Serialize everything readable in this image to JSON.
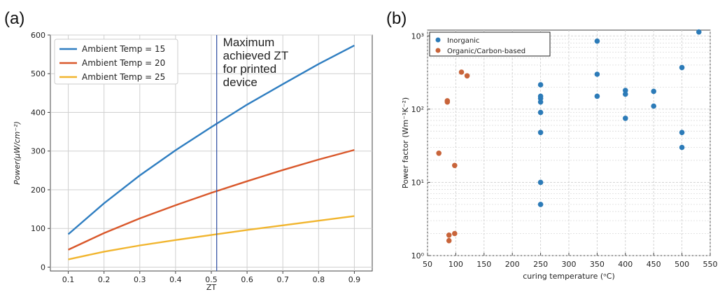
{
  "colors": {
    "blue": "#2f7ec1",
    "red": "#d9582b",
    "yellow": "#f1b52e",
    "vline": "#3b5aa8",
    "grid": "#d0d0d0",
    "inorganic": "#2c7bb8",
    "organic": "#c8643a"
  },
  "chart_data": [
    {
      "panel_label": "(a)",
      "type": "line",
      "title": "",
      "xlabel": "ZT",
      "ylabel": "Power(μW/cm⁻²)",
      "xlim": [
        0.05,
        0.95
      ],
      "ylim": [
        -10,
        600
      ],
      "x_ticks": [
        "0.1",
        "0.2",
        "0.3",
        "0.4",
        "0.5",
        "0.6",
        "0.7",
        "0.8",
        "0.9"
      ],
      "y_ticks": [
        "0",
        "100",
        "200",
        "300",
        "400",
        "500",
        "600"
      ],
      "grid": true,
      "legend_position": "top-left",
      "x": [
        0.1,
        0.2,
        0.3,
        0.4,
        0.5,
        0.6,
        0.7,
        0.8,
        0.9
      ],
      "series": [
        {
          "name": "Ambient Temp = 15",
          "color": "blue",
          "values": [
            85,
            165,
            237,
            302,
            362,
            420,
            473,
            525,
            573
          ]
        },
        {
          "name": "Ambient Temp = 20",
          "color": "red",
          "values": [
            45,
            88,
            126,
            160,
            192,
            222,
            251,
            278,
            303
          ]
        },
        {
          "name": "Ambient Temp = 25",
          "color": "yellow",
          "values": [
            20,
            40,
            56,
            70,
            83,
            96,
            108,
            120,
            132
          ]
        }
      ],
      "annotation": {
        "x": 0.515,
        "lines": [
          "Maximum",
          "achieved ZT",
          "for printed",
          "device"
        ]
      }
    },
    {
      "panel_label": "(b)",
      "type": "scatter",
      "title": "",
      "xlabel": "curing temperature (ᵒC)",
      "ylabel": "Power factor (Wm⁻¹K⁻²)",
      "xlim": [
        50,
        550
      ],
      "ylim": [
        1,
        1200
      ],
      "y_scale": "log",
      "x_ticks": [
        "50",
        "100",
        "150",
        "200",
        "250",
        "300",
        "350",
        "400",
        "450",
        "500",
        "550"
      ],
      "y_ticks": [
        "10⁰",
        "10¹",
        "10²",
        "10³"
      ],
      "grid": true,
      "legend_position": "top-left",
      "series": [
        {
          "name": "Inorganic",
          "color": "inorganic",
          "points": [
            [
              250,
              215
            ],
            [
              250,
              150
            ],
            [
              250,
              140
            ],
            [
              250,
              125
            ],
            [
              250,
              90
            ],
            [
              250,
              48
            ],
            [
              250,
              10
            ],
            [
              250,
              5
            ],
            [
              350,
              850
            ],
            [
              350,
              300
            ],
            [
              350,
              150
            ],
            [
              400,
              180
            ],
            [
              400,
              160
            ],
            [
              400,
              75
            ],
            [
              450,
              175
            ],
            [
              450,
              110
            ],
            [
              500,
              370
            ],
            [
              500,
              48
            ],
            [
              500,
              30
            ],
            [
              530,
              1130
            ]
          ]
        },
        {
          "name": "Organic/Carbon-based",
          "color": "organic",
          "points": [
            [
              70,
              25
            ],
            [
              85,
              130
            ],
            [
              85,
              125
            ],
            [
              88,
              1.9
            ],
            [
              88,
              1.6
            ],
            [
              98,
              2.0
            ],
            [
              98,
              17
            ],
            [
              110,
              320
            ],
            [
              120,
              285
            ]
          ]
        }
      ]
    }
  ]
}
